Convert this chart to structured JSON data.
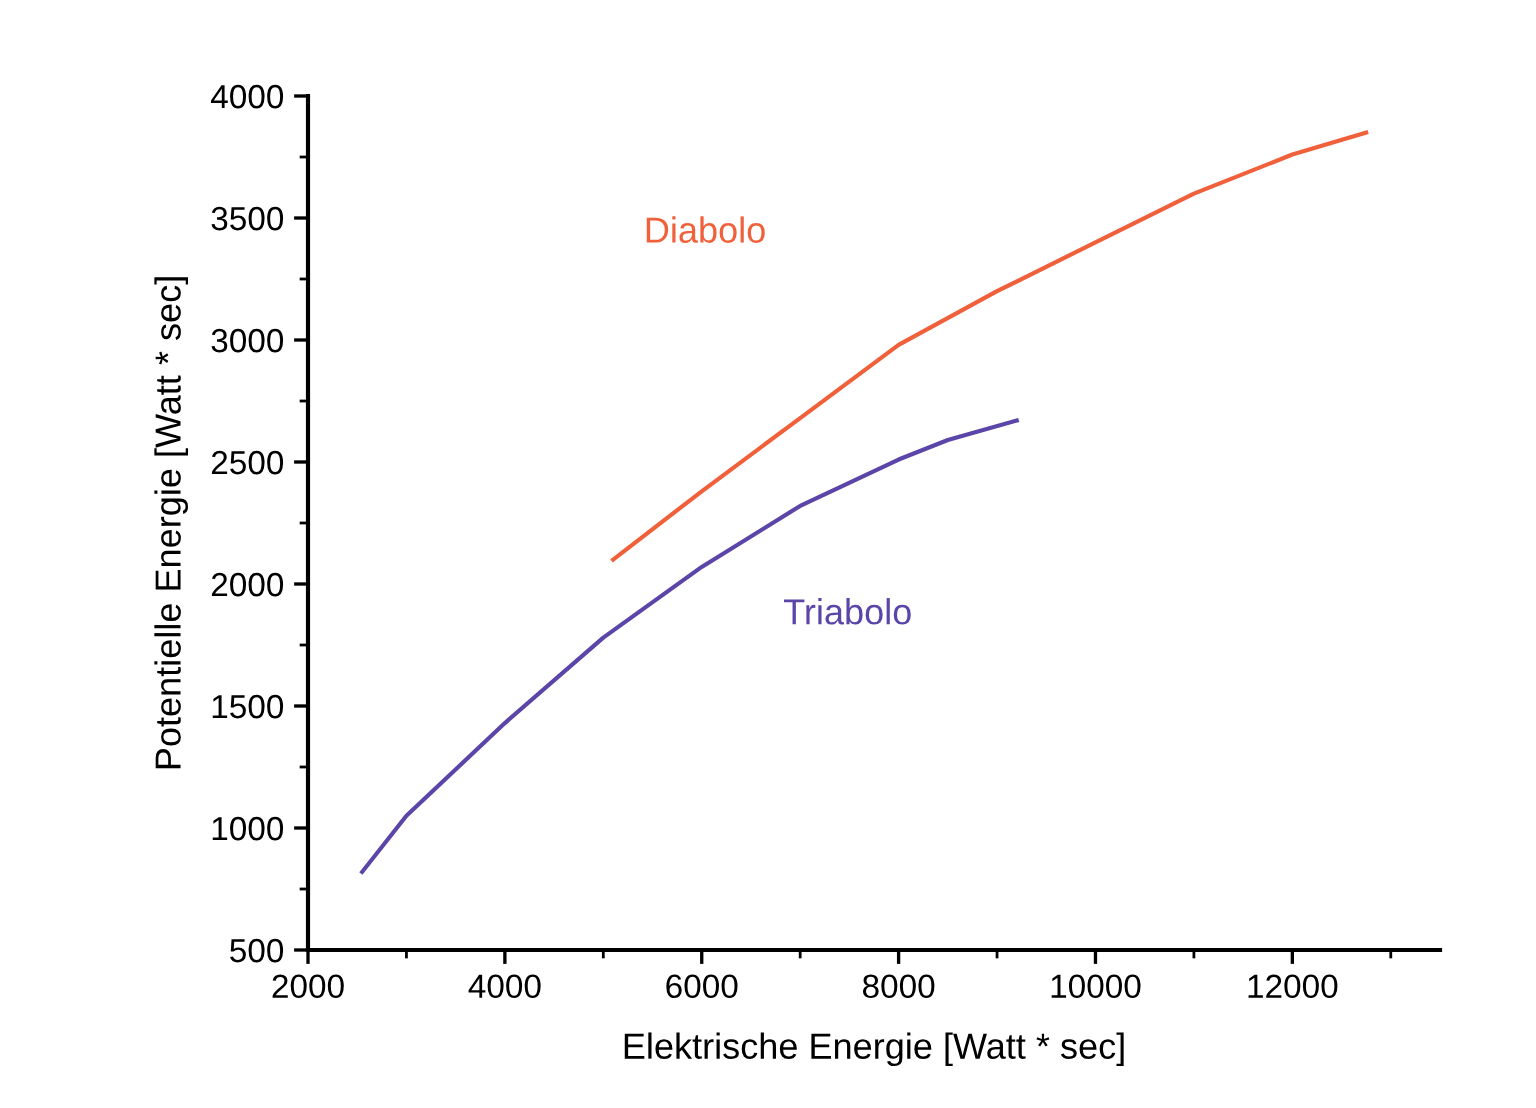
{
  "chart_data": {
    "type": "line",
    "xlabel": "Elektrische Energie [Watt * sec]",
    "ylabel": "Potentielle Energie [Watt * sec]",
    "xlim": [
      2000,
      13500
    ],
    "ylim": [
      500,
      4000
    ],
    "xticks": [
      2000,
      4000,
      6000,
      8000,
      10000,
      12000
    ],
    "yticks": [
      500,
      1000,
      1500,
      2000,
      2500,
      3000,
      3500,
      4000
    ],
    "grid": false,
    "legend": false,
    "marker": "none",
    "line_style": "solid",
    "series": [
      {
        "name": "Diabolo",
        "color": "#f0603a",
        "x": [
          5100,
          6000,
          7000,
          8000,
          9000,
          10000,
          11000,
          12000,
          12750
        ],
        "values": [
          2100,
          2380,
          2680,
          2980,
          3200,
          3400,
          3600,
          3760,
          3850
        ]
      },
      {
        "name": "Triabolo",
        "color": "#5b45a8",
        "x": [
          2550,
          3000,
          4000,
          5000,
          6000,
          7000,
          8000,
          8500,
          9200
        ],
        "values": [
          820,
          1050,
          1430,
          1780,
          2070,
          2320,
          2510,
          2590,
          2670
        ]
      }
    ]
  }
}
